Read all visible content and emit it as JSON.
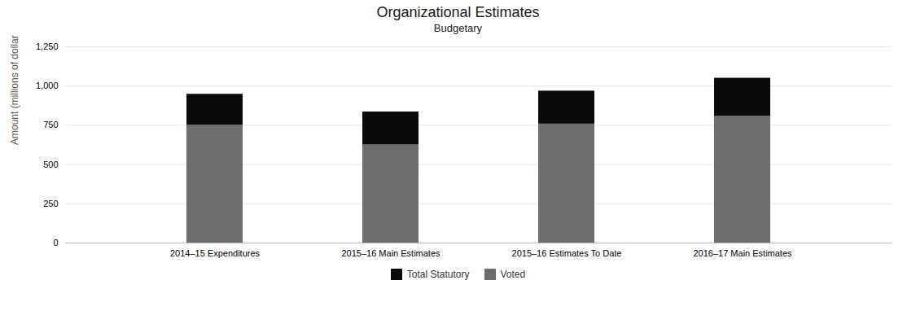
{
  "chart_data": {
    "type": "bar",
    "title": "Organizational Estimates",
    "subtitle": "Budgetary",
    "categories": [
      "2014–15 Expenditures",
      "2015–16 Main Estimates",
      "2015–16 Estimates To Date",
      "2016–17 Main Estimates"
    ],
    "series": [
      {
        "name": "Voted",
        "color": "#6d6d6d",
        "values": [
          750,
          625,
          758,
          808
        ]
      },
      {
        "name": "Total Statutory",
        "color": "#0a0a0a",
        "values": [
          198,
          210,
          210,
          242
        ]
      }
    ],
    "stacked": true,
    "ylabel": "Amount (millions of dollars)",
    "ylim": [
      0,
      1250
    ],
    "yticks": [
      0,
      250,
      500,
      750,
      {
        "value": 1000,
        "label": "1,000"
      },
      {
        "value": 1250,
        "label": "1,250"
      }
    ],
    "grid": true,
    "legend": "bottom"
  }
}
